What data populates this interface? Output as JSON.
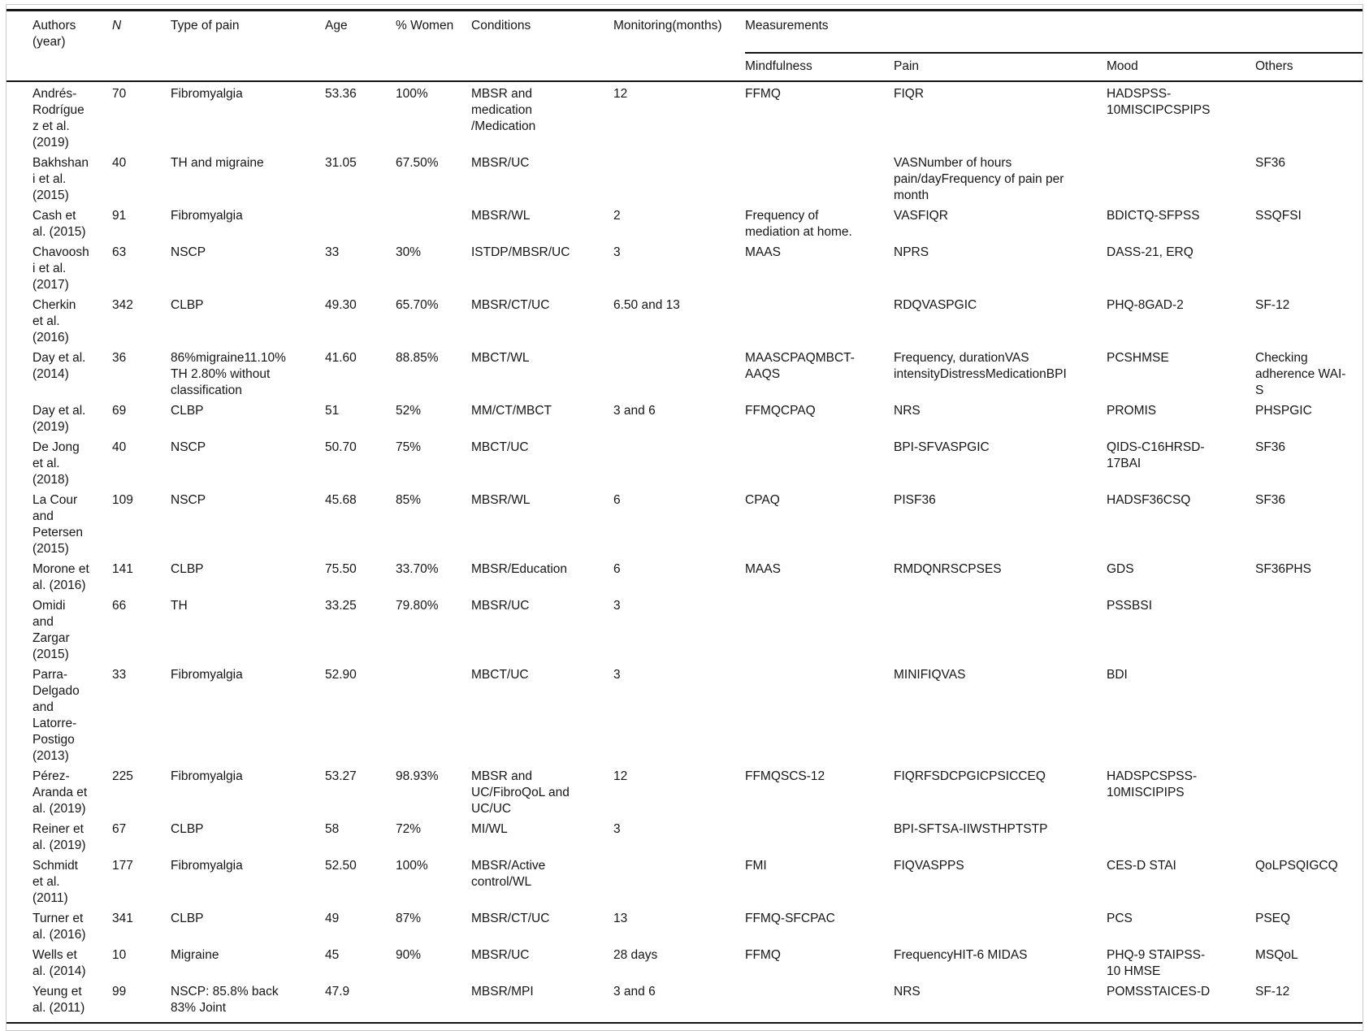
{
  "table": {
    "headers": {
      "authors": "Authors (year)",
      "n": "N",
      "type": "Type of pain",
      "age": "Age",
      "women": "% Women",
      "conditions": "Conditions",
      "monitoring": "Monitoring(months)",
      "measurements": "Measurements",
      "mindfulness": "Mindfulness",
      "pain": "Pain",
      "mood": "Mood",
      "others": "Others"
    },
    "rows": [
      {
        "authors": "Andrés-Rodríguez et al. (2019)",
        "n": "70",
        "type": "Fibromyalgia",
        "age": "53.36",
        "women": "100%",
        "conditions": "MBSR and medication /Medication",
        "monitoring": "12",
        "mindfulness": "FFMQ",
        "pain": "FIQR",
        "mood": "HADSPSS-10MISCIPCSPIPS",
        "others": ""
      },
      {
        "authors": "Bakhshani et al. (2015)",
        "n": "40",
        "type": "TH and migraine",
        "age": "31.05",
        "women": "67.50%",
        "conditions": "MBSR/UC",
        "monitoring": "",
        "mindfulness": "",
        "pain": "VASNumber of hours pain/dayFrequency of pain per month",
        "mood": "",
        "others": "SF36"
      },
      {
        "authors": "Cash et al. (2015)",
        "n": "91",
        "type": "Fibromyalgia",
        "age": "",
        "women": "",
        "conditions": "MBSR/WL",
        "monitoring": "2",
        "mindfulness": "Frequency of mediation at home.",
        "pain": "VASFIQR",
        "mood": "BDICTQ-SFPSS",
        "others": "SSQFSI"
      },
      {
        "authors": "Chavooshi et al. (2017)",
        "n": "63",
        "type": "NSCP",
        "age": "33",
        "women": "30%",
        "conditions": "ISTDP/MBSR/UC",
        "monitoring": "3",
        "mindfulness": "MAAS",
        "pain": "NPRS",
        "mood": "DASS-21, ERQ",
        "others": ""
      },
      {
        "authors": "Cherkin et al. (2016)",
        "n": "342",
        "type": "CLBP",
        "age": "49.30",
        "women": "65.70%",
        "conditions": "MBSR/CT/UC",
        "monitoring": "6.50 and 13",
        "mindfulness": "",
        "pain": "RDQVASPGIC",
        "mood": "PHQ-8GAD-2",
        "others": "SF-12"
      },
      {
        "authors": "Day et al. (2014)",
        "n": "36",
        "type": "86%migraine11.10% TH 2.80% without classification",
        "age": "41.60",
        "women": "88.85%",
        "conditions": "MBCT/WL",
        "monitoring": "",
        "mindfulness": "MAASCPAQMBCT-AAQS",
        "pain": "Frequency, durationVAS intensityDistressMedicationBPI",
        "mood": "PCSHMSE",
        "others": "Checking adherence WAI-S"
      },
      {
        "authors": "Day et al. (2019)",
        "n": "69",
        "type": "CLBP",
        "age": "51",
        "women": "52%",
        "conditions": "MM/CT/MBCT",
        "monitoring": "3 and 6",
        "mindfulness": "FFMQCPAQ",
        "pain": "NRS",
        "mood": "PROMIS",
        "others": "PHSPGIC"
      },
      {
        "authors": "De Jong et al. (2018)",
        "n": "40",
        "type": "NSCP",
        "age": "50.70",
        "women": "75%",
        "conditions": "MBCT/UC",
        "monitoring": "",
        "mindfulness": "",
        "pain": "BPI-SFVASPGIC",
        "mood": "QIDS-C16HRSD-17BAI",
        "others": "SF36"
      },
      {
        "authors": "La Cour and Petersen (2015)",
        "n": "109",
        "type": "NSCP",
        "age": "45.68",
        "women": "85%",
        "conditions": "MBSR/WL",
        "monitoring": "6",
        "mindfulness": "CPAQ",
        "pain": "PISF36",
        "mood": "HADSF36CSQ",
        "others": "SF36"
      },
      {
        "authors": "Morone et al. (2016)",
        "n": "141",
        "type": "CLBP",
        "age": "75.50",
        "women": "33.70%",
        "conditions": "MBSR/Education",
        "monitoring": "6",
        "mindfulness": "MAAS",
        "pain": "RMDQNRSCPSES",
        "mood": "GDS",
        "others": "SF36PHS"
      },
      {
        "authors": "Omidi and Zargar (2015)",
        "n": "66",
        "type": "TH",
        "age": "33.25",
        "women": "79.80%",
        "conditions": "MBSR/UC",
        "monitoring": "3",
        "mindfulness": "",
        "pain": "",
        "mood": "PSSBSI",
        "others": ""
      },
      {
        "authors": "Parra-Delgado and Latorre-Postigo (2013)",
        "n": "33",
        "type": "Fibromyalgia",
        "age": "52.90",
        "women": "",
        "conditions": "MBCT/UC",
        "monitoring": "3",
        "mindfulness": "",
        "pain": "MINIFIQVAS",
        "mood": "BDI",
        "others": ""
      },
      {
        "authors": "Pérez-Aranda et al. (2019)",
        "n": "225",
        "type": "Fibromyalgia",
        "age": "53.27",
        "women": "98.93%",
        "conditions": "MBSR and UC/FibroQoL and UC/UC",
        "monitoring": "12",
        "mindfulness": "FFMQSCS-12",
        "pain": "FIQRFSDCPGICPSICCEQ",
        "mood": "HADSPCSPSS-10MISCIPIPS",
        "others": ""
      },
      {
        "authors": "Reiner et al. (2019)",
        "n": "67",
        "type": "CLBP",
        "age": "58",
        "women": "72%",
        "conditions": "MI/WL",
        "monitoring": "3",
        "mindfulness": "",
        "pain": "BPI-SFTSA-IIWSTHPTSTP",
        "mood": "",
        "others": ""
      },
      {
        "authors": "Schmidt et al. (2011)",
        "n": "177",
        "type": "Fibromyalgia",
        "age": "52.50",
        "women": "100%",
        "conditions": "MBSR/Active control/WL",
        "monitoring": "",
        "mindfulness": "FMI",
        "pain": "FIQVASPPS",
        "mood": "CES-D STAI",
        "others": "QoLPSQIGCQ"
      },
      {
        "authors": "Turner et al. (2016)",
        "n": "341",
        "type": "CLBP",
        "age": "49",
        "women": "87%",
        "conditions": "MBSR/CT/UC",
        "monitoring": "13",
        "mindfulness": "FFMQ-SFCPAC",
        "pain": "",
        "mood": "PCS",
        "others": "PSEQ"
      },
      {
        "authors": "Wells et al. (2014)",
        "n": "10",
        "type": "Migraine",
        "age": "45",
        "women": "90%",
        "conditions": "MBSR/UC",
        "monitoring": "28 days",
        "mindfulness": "FFMQ",
        "pain": "FrequencyHIT-6 MIDAS",
        "mood": "PHQ-9 STAIPSS-10 HMSE",
        "others": "MSQoL"
      },
      {
        "authors": "Yeung et al. (2011)",
        "n": "99",
        "type": "NSCP: 85.8% back 83% Joint",
        "age": "47.9",
        "women": "",
        "conditions": "MBSR/MPI",
        "monitoring": "3 and 6",
        "mindfulness": "",
        "pain": "NRS",
        "mood": "POMSSTAICES-D",
        "others": "SF-12"
      }
    ]
  }
}
